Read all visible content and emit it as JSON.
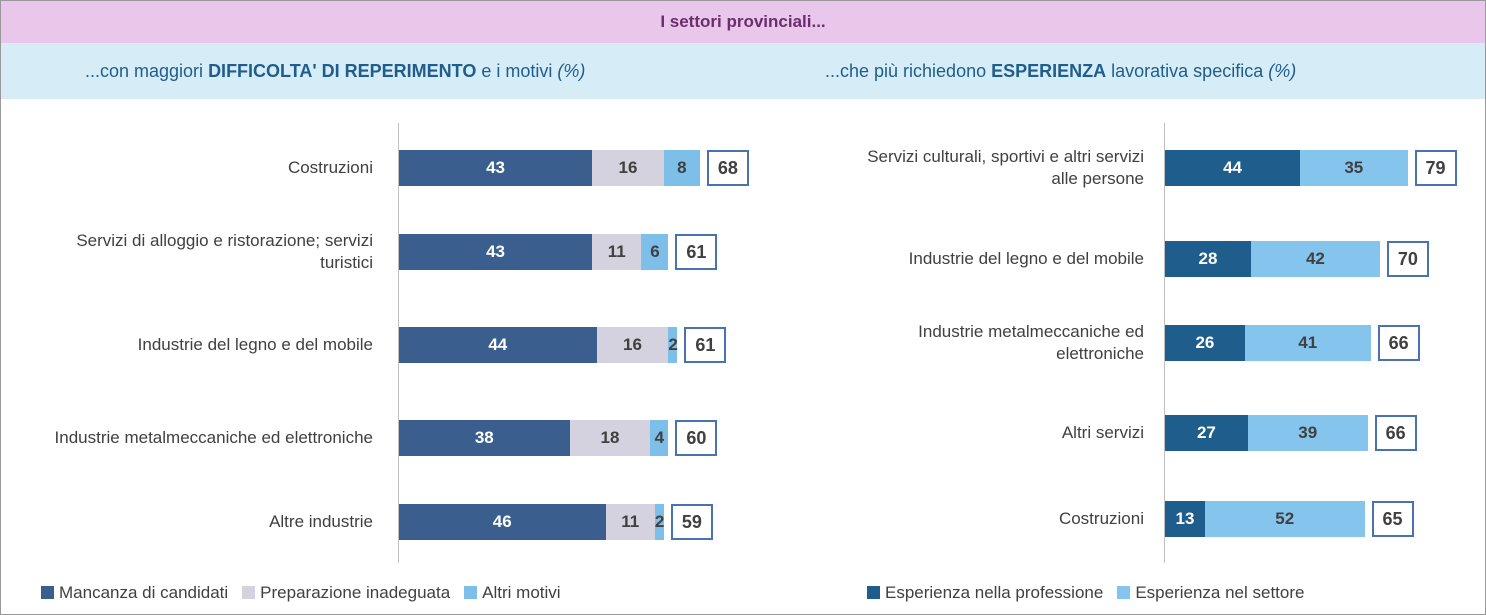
{
  "header": {
    "title": "I settori provinciali..."
  },
  "chart_data": [
    {
      "type": "bar",
      "orientation": "horizontal",
      "stacked": true,
      "title_parts": [
        "...con maggiori ",
        "DIFFICOLTA' DI REPERIMENTO",
        " e i motivi ",
        "(%)"
      ],
      "categories": [
        "Costruzioni",
        "Servizi di alloggio e ristorazione; servizi turistici",
        "Industrie del legno e del mobile",
        "Industrie metalmeccaniche ed elettroniche",
        "Altre industrie"
      ],
      "series": [
        {
          "name": "Mancanza di candidati",
          "color": "#3a5f8e",
          "values": [
            43,
            43,
            44,
            38,
            46
          ]
        },
        {
          "name": "Preparazione inadeguata",
          "color": "#d3d2de",
          "values": [
            16,
            11,
            16,
            18,
            11
          ]
        },
        {
          "name": "Altri motivi",
          "color": "#7dbfe9",
          "values": [
            8,
            6,
            2,
            4,
            2
          ]
        }
      ],
      "totals": [
        68,
        61,
        61,
        60,
        59
      ],
      "xlim": [
        0,
        100
      ]
    },
    {
      "type": "bar",
      "orientation": "horizontal",
      "stacked": true,
      "title_parts": [
        "...che più richiedono ",
        "ESPERIENZA",
        " lavorativa specifica ",
        "(%)"
      ],
      "categories": [
        "Servizi culturali, sportivi e altri servizi alle persone",
        "Industrie del legno e del mobile",
        "Industrie metalmeccaniche ed elettroniche",
        "Altri servizi",
        "Costruzioni"
      ],
      "series": [
        {
          "name": "Esperienza nella professione",
          "color": "#1f5e8c",
          "values": [
            44,
            28,
            26,
            27,
            13
          ]
        },
        {
          "name": "Esperienza nel settore",
          "color": "#85c4ec",
          "values": [
            35,
            42,
            41,
            39,
            52
          ]
        }
      ],
      "totals": [
        79,
        70,
        66,
        66,
        65
      ],
      "xlim": [
        0,
        100
      ]
    }
  ]
}
